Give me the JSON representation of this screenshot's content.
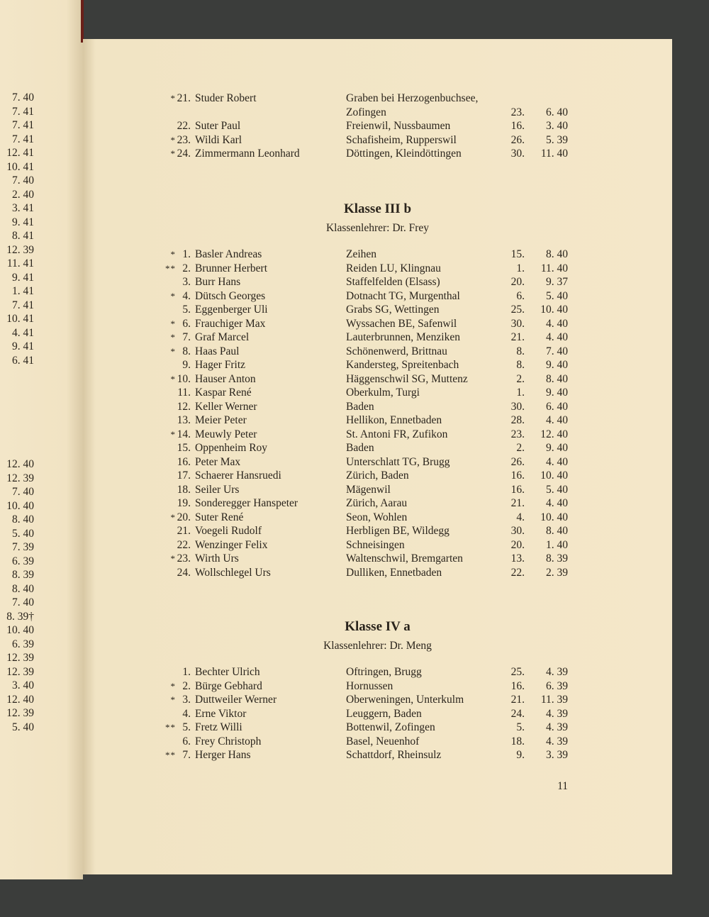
{
  "left_page_dates_top": [
    "7. 40",
    "7. 41",
    "7. 41",
    "7. 41",
    "12. 41",
    "10. 41",
    "7. 40",
    "2. 40",
    "3. 41",
    "9. 41",
    "8. 41",
    "12. 39",
    "11. 41",
    "9. 41",
    "1. 41",
    "7. 41",
    "10. 41",
    "4. 41",
    "9. 41",
    "6. 41"
  ],
  "left_page_dates_bottom": [
    "12. 40",
    "12. 39",
    "7. 40",
    "10. 40",
    "8. 40",
    "5. 40",
    "7. 39",
    "6. 39",
    "8. 39",
    "8. 40",
    "7. 40",
    "8. 39†",
    "10. 40",
    "6. 39",
    "12. 39",
    "12. 39",
    "3. 40",
    "12. 40",
    "12. 39",
    "5. 40"
  ],
  "continued": [
    {
      "mark": "*",
      "num": "21.",
      "name": "Studer Robert",
      "place": "Graben bei Herzogenbuchsee,",
      "day": "",
      "my": ""
    },
    {
      "mark": "",
      "num": "",
      "name": "",
      "place": "Zofingen",
      "day": "23.",
      "my": "6. 40"
    },
    {
      "mark": "",
      "num": "22.",
      "name": "Suter Paul",
      "place": "Freienwil, Nussbaumen",
      "day": "16.",
      "my": "3. 40"
    },
    {
      "mark": "*",
      "num": "23.",
      "name": "Wildi Karl",
      "place": "Schafisheim, Rupperswil",
      "day": "26.",
      "my": "5. 39"
    },
    {
      "mark": "*",
      "num": "24.",
      "name": "Zimmermann Leonhard",
      "place": "Döttingen, Kleindöttingen",
      "day": "30.",
      "my": "11. 40"
    }
  ],
  "class_3b": {
    "title": "Klasse III b",
    "teacher": "Klassenlehrer: Dr. Frey",
    "students": [
      {
        "mark": "*",
        "num": "1.",
        "name": "Basler Andreas",
        "place": "Zeihen",
        "day": "15.",
        "my": "8. 40"
      },
      {
        "mark": "**",
        "num": "2.",
        "name": "Brunner Herbert",
        "place": "Reiden LU, Klingnau",
        "day": "1.",
        "my": "11. 40"
      },
      {
        "mark": "",
        "num": "3.",
        "name": "Burr Hans",
        "place": "Staffelfelden (Elsass)",
        "day": "20.",
        "my": "9. 37"
      },
      {
        "mark": "*",
        "num": "4.",
        "name": "Dütsch Georges",
        "place": "Dotnacht TG, Murgenthal",
        "day": "6.",
        "my": "5. 40"
      },
      {
        "mark": "",
        "num": "5.",
        "name": "Eggenberger Uli",
        "place": "Grabs SG, Wettingen",
        "day": "25.",
        "my": "10. 40"
      },
      {
        "mark": "*",
        "num": "6.",
        "name": "Frauchiger Max",
        "place": "Wyssachen BE, Safenwil",
        "day": "30.",
        "my": "4. 40"
      },
      {
        "mark": "*",
        "num": "7.",
        "name": "Graf Marcel",
        "place": "Lauterbrunnen, Menziken",
        "day": "21.",
        "my": "4. 40"
      },
      {
        "mark": "*",
        "num": "8.",
        "name": "Haas Paul",
        "place": "Schönenwerd, Brittnau",
        "day": "8.",
        "my": "7. 40"
      },
      {
        "mark": "",
        "num": "9.",
        "name": "Hager Fritz",
        "place": "Kandersteg, Spreitenbach",
        "day": "8.",
        "my": "9. 40"
      },
      {
        "mark": "*",
        "num": "10.",
        "name": "Hauser Anton",
        "place": "Häggenschwil SG, Muttenz",
        "day": "2.",
        "my": "8. 40"
      },
      {
        "mark": "",
        "num": "11.",
        "name": "Kaspar René",
        "place": "Oberkulm, Turgi",
        "day": "1.",
        "my": "9. 40"
      },
      {
        "mark": "",
        "num": "12.",
        "name": "Keller Werner",
        "place": "Baden",
        "day": "30.",
        "my": "6. 40"
      },
      {
        "mark": "",
        "num": "13.",
        "name": "Meier Peter",
        "place": "Hellikon, Ennetbaden",
        "day": "28.",
        "my": "4. 40"
      },
      {
        "mark": "*",
        "num": "14.",
        "name": "Meuwly Peter",
        "place": "St. Antoni FR, Zufikon",
        "day": "23.",
        "my": "12. 40"
      },
      {
        "mark": "",
        "num": "15.",
        "name": "Oppenheim Roy",
        "place": "Baden",
        "day": "2.",
        "my": "9. 40"
      },
      {
        "mark": "",
        "num": "16.",
        "name": "Peter Max",
        "place": "Unterschlatt TG, Brugg",
        "day": "26.",
        "my": "4. 40"
      },
      {
        "mark": "",
        "num": "17.",
        "name": "Schaerer Hansruedi",
        "place": "Zürich, Baden",
        "day": "16.",
        "my": "10. 40"
      },
      {
        "mark": "",
        "num": "18.",
        "name": "Seiler Urs",
        "place": "Mägenwil",
        "day": "16.",
        "my": "5. 40"
      },
      {
        "mark": "",
        "num": "19.",
        "name": "Sonderegger Hanspeter",
        "place": "Zürich, Aarau",
        "day": "21.",
        "my": "4. 40"
      },
      {
        "mark": "*",
        "num": "20.",
        "name": "Suter René",
        "place": "Seon, Wohlen",
        "day": "4.",
        "my": "10. 40"
      },
      {
        "mark": "",
        "num": "21.",
        "name": "Voegeli Rudolf",
        "place": "Herbligen BE, Wildegg",
        "day": "30.",
        "my": "8. 40"
      },
      {
        "mark": "",
        "num": "22.",
        "name": "Wenzinger Felix",
        "place": "Schneisingen",
        "day": "20.",
        "my": "1. 40"
      },
      {
        "mark": "*",
        "num": "23.",
        "name": "Wirth Urs",
        "place": "Waltenschwil, Bremgarten",
        "day": "13.",
        "my": "8. 39"
      },
      {
        "mark": "",
        "num": "24.",
        "name": "Wollschlegel Urs",
        "place": "Dulliken, Ennetbaden",
        "day": "22.",
        "my": "2. 39"
      }
    ]
  },
  "class_4a": {
    "title": "Klasse IV a",
    "teacher": "Klassenlehrer: Dr. Meng",
    "students": [
      {
        "mark": "",
        "num": "1.",
        "name": "Bechter Ulrich",
        "place": "Oftringen, Brugg",
        "day": "25.",
        "my": "4. 39"
      },
      {
        "mark": "*",
        "num": "2.",
        "name": "Bürge Gebhard",
        "place": "Hornussen",
        "day": "16.",
        "my": "6. 39"
      },
      {
        "mark": "*",
        "num": "3.",
        "name": "Duttweiler Werner",
        "place": "Oberweningen, Unterkulm",
        "day": "21.",
        "my": "11. 39"
      },
      {
        "mark": "",
        "num": "4.",
        "name": "Erne Viktor",
        "place": "Leuggern, Baden",
        "day": "24.",
        "my": "4. 39"
      },
      {
        "mark": "**",
        "num": "5.",
        "name": "Fretz Willi",
        "place": "Bottenwil, Zofingen",
        "day": "5.",
        "my": "4. 39"
      },
      {
        "mark": "",
        "num": "6.",
        "name": "Frey Christoph",
        "place": "Basel, Neuenhof",
        "day": "18.",
        "my": "4. 39"
      },
      {
        "mark": "**",
        "num": "7.",
        "name": "Herger Hans",
        "place": "Schattdorf, Rheinsulz",
        "day": "9.",
        "my": "3. 39"
      }
    ]
  },
  "page_number": "11"
}
